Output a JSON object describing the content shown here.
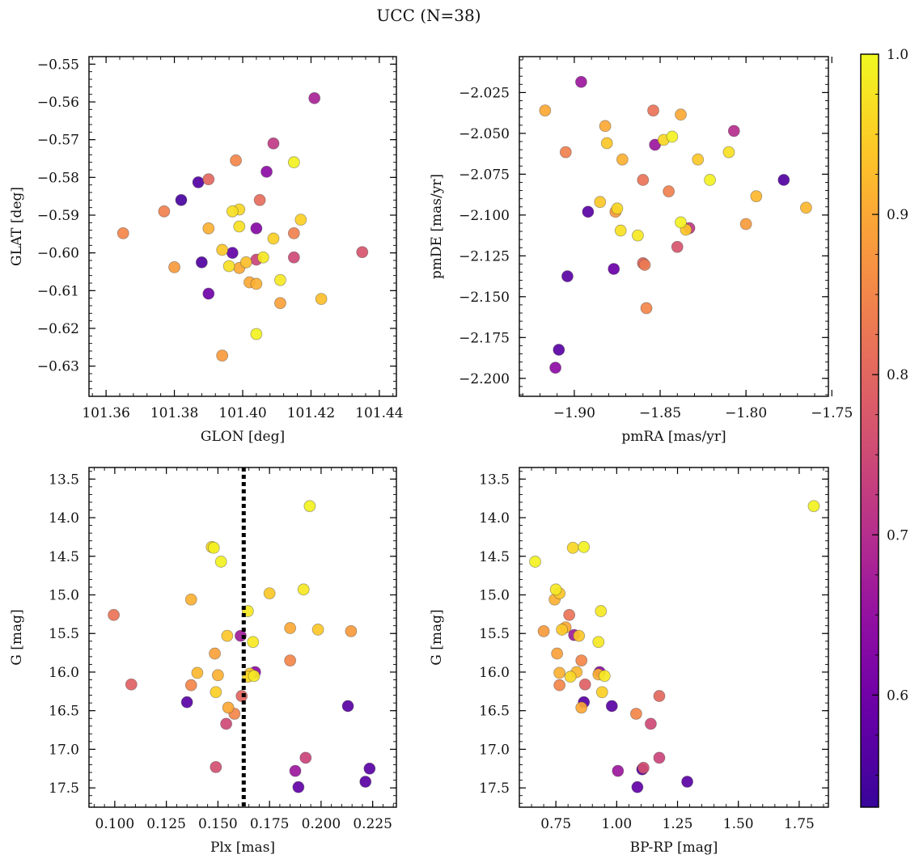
{
  "figure": {
    "title": "UCC (N=38)"
  },
  "colorbar": {
    "colormap": "plasma",
    "range": [
      0.53,
      1.0
    ],
    "ticks": [
      0.6,
      0.7,
      0.8,
      0.9,
      1.0
    ],
    "tick_labels": [
      "0.6",
      "0.7",
      "0.8",
      "0.9",
      "1.0"
    ]
  },
  "chart_data": [
    {
      "type": "scatter",
      "xlabel": "GLON [deg]",
      "ylabel": "GLAT [deg]",
      "xlim": [
        101.355,
        101.445
      ],
      "ylim": [
        -0.638,
        -0.548
      ],
      "y_inverted": false,
      "xticks": [
        101.36,
        101.38,
        101.4,
        101.42,
        101.44
      ],
      "xtick_labels": [
        "101.36",
        "101.38",
        "101.40",
        "101.42",
        "101.44"
      ],
      "yticks": [
        -0.63,
        -0.62,
        -0.61,
        -0.6,
        -0.59,
        -0.58,
        -0.57,
        -0.56,
        -0.55
      ],
      "ytick_labels": [
        "−0.63",
        "−0.62",
        "−0.61",
        "−0.60",
        "−0.59",
        "−0.58",
        "−0.57",
        "−0.56",
        "−0.55"
      ],
      "points": [
        {
          "x": 101.421,
          "y": -0.559,
          "c": 0.68
        },
        {
          "x": 101.409,
          "y": -0.571,
          "c": 0.72
        },
        {
          "x": 101.415,
          "y": -0.576,
          "c": 0.99
        },
        {
          "x": 101.398,
          "y": -0.5755,
          "c": 0.85
        },
        {
          "x": 101.407,
          "y": -0.5785,
          "c": 0.64
        },
        {
          "x": 101.387,
          "y": -0.5813,
          "c": 0.56
        },
        {
          "x": 101.39,
          "y": -0.5805,
          "c": 0.8
        },
        {
          "x": 101.382,
          "y": -0.586,
          "c": 0.55
        },
        {
          "x": 101.405,
          "y": -0.586,
          "c": 0.81
        },
        {
          "x": 101.377,
          "y": -0.589,
          "c": 0.84
        },
        {
          "x": 101.397,
          "y": -0.589,
          "c": 0.97
        },
        {
          "x": 101.399,
          "y": -0.5885,
          "c": 0.96
        },
        {
          "x": 101.417,
          "y": -0.5912,
          "c": 0.95
        },
        {
          "x": 101.399,
          "y": -0.593,
          "c": 0.97
        },
        {
          "x": 101.39,
          "y": -0.5935,
          "c": 0.91
        },
        {
          "x": 101.404,
          "y": -0.5935,
          "c": 0.63
        },
        {
          "x": 101.365,
          "y": -0.5948,
          "c": 0.85
        },
        {
          "x": 101.415,
          "y": -0.5948,
          "c": 0.84
        },
        {
          "x": 101.409,
          "y": -0.5962,
          "c": 0.95
        },
        {
          "x": 101.394,
          "y": -0.5992,
          "c": 0.94
        },
        {
          "x": 101.435,
          "y": -0.5998,
          "c": 0.77
        },
        {
          "x": 101.397,
          "y": -0.6,
          "c": 0.58
        },
        {
          "x": 101.406,
          "y": -0.6012,
          "c": 0.98
        },
        {
          "x": 101.404,
          "y": -0.6018,
          "c": 0.74
        },
        {
          "x": 101.415,
          "y": -0.6012,
          "c": 0.75
        },
        {
          "x": 101.388,
          "y": -0.6025,
          "c": 0.56
        },
        {
          "x": 101.401,
          "y": -0.6025,
          "c": 0.93
        },
        {
          "x": 101.38,
          "y": -0.6038,
          "c": 0.88
        },
        {
          "x": 101.396,
          "y": -0.6035,
          "c": 0.97
        },
        {
          "x": 101.399,
          "y": -0.604,
          "c": 0.9
        },
        {
          "x": 101.402,
          "y": -0.6078,
          "c": 0.9
        },
        {
          "x": 101.404,
          "y": -0.6082,
          "c": 0.91
        },
        {
          "x": 101.411,
          "y": -0.6072,
          "c": 0.98
        },
        {
          "x": 101.39,
          "y": -0.6108,
          "c": 0.6
        },
        {
          "x": 101.411,
          "y": -0.6133,
          "c": 0.89
        },
        {
          "x": 101.423,
          "y": -0.6122,
          "c": 0.93
        },
        {
          "x": 101.404,
          "y": -0.6215,
          "c": 0.99
        },
        {
          "x": 101.394,
          "y": -0.6272,
          "c": 0.88
        }
      ]
    },
    {
      "type": "scatter",
      "xlabel": "pmRA [mas/yr]",
      "ylabel": "pmDE [mas/yr]",
      "xlim": [
        -1.932,
        -1.752
      ],
      "ylim": [
        -2.211,
        -2.003
      ],
      "y_inverted": false,
      "xticks": [
        -1.9,
        -1.85,
        -1.8,
        -1.75
      ],
      "xtick_labels": [
        "−1.90",
        "−1.85",
        "−1.80",
        "−1.75"
      ],
      "yticks": [
        -2.2,
        -2.175,
        -2.15,
        -2.125,
        -2.1,
        -2.075,
        -2.05,
        -2.025
      ],
      "ytick_labels": [
        "−2.200",
        "−2.175",
        "−2.150",
        "−2.125",
        "−2.100",
        "−2.075",
        "−2.050",
        "−2.025"
      ],
      "points": [
        {
          "x": -1.896,
          "y": -2.0185,
          "c": 0.66
        },
        {
          "x": -1.917,
          "y": -2.036,
          "c": 0.9
        },
        {
          "x": -1.854,
          "y": -2.036,
          "c": 0.82
        },
        {
          "x": -1.838,
          "y": -2.0385,
          "c": 0.9
        },
        {
          "x": -1.882,
          "y": -2.0455,
          "c": 0.9
        },
        {
          "x": -1.807,
          "y": -2.0485,
          "c": 0.7
        },
        {
          "x": -1.843,
          "y": -2.052,
          "c": 0.99
        },
        {
          "x": -1.848,
          "y": -2.054,
          "c": 0.96
        },
        {
          "x": -1.853,
          "y": -2.057,
          "c": 0.66
        },
        {
          "x": -1.881,
          "y": -2.056,
          "c": 0.94
        },
        {
          "x": -1.905,
          "y": -2.0615,
          "c": 0.84
        },
        {
          "x": -1.81,
          "y": -2.0615,
          "c": 0.97
        },
        {
          "x": -1.872,
          "y": -2.066,
          "c": 0.91
        },
        {
          "x": -1.828,
          "y": -2.066,
          "c": 0.94
        },
        {
          "x": -1.821,
          "y": -2.0785,
          "c": 0.99
        },
        {
          "x": -1.86,
          "y": -2.0785,
          "c": 0.82
        },
        {
          "x": -1.778,
          "y": -2.0785,
          "c": 0.56
        },
        {
          "x": -1.845,
          "y": -2.0855,
          "c": 0.84
        },
        {
          "x": -1.794,
          "y": -2.0885,
          "c": 0.92
        },
        {
          "x": -1.885,
          "y": -2.092,
          "c": 0.94
        },
        {
          "x": -1.765,
          "y": -2.0955,
          "c": 0.92
        },
        {
          "x": -1.875,
          "y": -2.096,
          "c": 0.96
        },
        {
          "x": -1.876,
          "y": -2.098,
          "c": 0.88
        },
        {
          "x": -1.892,
          "y": -2.098,
          "c": 0.57
        },
        {
          "x": -1.838,
          "y": -2.1045,
          "c": 0.99
        },
        {
          "x": -1.8,
          "y": -2.1055,
          "c": 0.88
        },
        {
          "x": -1.833,
          "y": -2.108,
          "c": 0.72
        },
        {
          "x": -1.835,
          "y": -2.109,
          "c": 0.94
        },
        {
          "x": -1.873,
          "y": -2.1095,
          "c": 0.97
        },
        {
          "x": -1.863,
          "y": -2.1125,
          "c": 0.98
        },
        {
          "x": -1.84,
          "y": -2.1195,
          "c": 0.77
        },
        {
          "x": -1.86,
          "y": -2.1295,
          "c": 0.8
        },
        {
          "x": -1.859,
          "y": -2.1305,
          "c": 0.83
        },
        {
          "x": -1.877,
          "y": -2.133,
          "c": 0.59
        },
        {
          "x": -1.904,
          "y": -2.1375,
          "c": 0.57
        },
        {
          "x": -1.858,
          "y": -2.157,
          "c": 0.85
        },
        {
          "x": -1.909,
          "y": -2.1825,
          "c": 0.57
        },
        {
          "x": -1.911,
          "y": -2.1935,
          "c": 0.64
        }
      ]
    },
    {
      "type": "scatter",
      "xlabel": "Plx [mas]",
      "ylabel": "G [mag]",
      "xlim": [
        0.0875,
        0.2365
      ],
      "ylim": [
        17.75,
        13.35
      ],
      "y_inverted": true,
      "vline": 0.1625,
      "xticks": [
        0.1,
        0.125,
        0.15,
        0.175,
        0.2,
        0.225
      ],
      "xtick_labels": [
        "0.100",
        "0.125",
        "0.150",
        "0.175",
        "0.200",
        "0.225"
      ],
      "yticks": [
        13.5,
        14.0,
        14.5,
        15.0,
        15.5,
        16.0,
        16.5,
        17.0,
        17.5
      ],
      "ytick_labels": [
        "13.5",
        "14.0",
        "14.5",
        "15.0",
        "15.5",
        "16.0",
        "16.5",
        "17.0",
        "17.5"
      ],
      "points": [
        {
          "x": 0.1945,
          "y": 13.85,
          "c": 0.99
        },
        {
          "x": 0.147,
          "y": 14.38,
          "c": 0.96
        },
        {
          "x": 0.148,
          "y": 14.39,
          "c": 0.99
        },
        {
          "x": 0.1515,
          "y": 14.57,
          "c": 0.99
        },
        {
          "x": 0.1915,
          "y": 14.93,
          "c": 0.98
        },
        {
          "x": 0.175,
          "y": 14.98,
          "c": 0.94
        },
        {
          "x": 0.137,
          "y": 15.06,
          "c": 0.91
        },
        {
          "x": 0.1645,
          "y": 15.21,
          "c": 0.98
        },
        {
          "x": 0.0995,
          "y": 15.26,
          "c": 0.82
        },
        {
          "x": 0.185,
          "y": 15.43,
          "c": 0.9
        },
        {
          "x": 0.1985,
          "y": 15.45,
          "c": 0.94
        },
        {
          "x": 0.2145,
          "y": 15.47,
          "c": 0.88
        },
        {
          "x": 0.1545,
          "y": 15.53,
          "c": 0.94
        },
        {
          "x": 0.161,
          "y": 15.53,
          "c": 0.67
        },
        {
          "x": 0.167,
          "y": 15.61,
          "c": 0.98
        },
        {
          "x": 0.1485,
          "y": 15.76,
          "c": 0.89
        },
        {
          "x": 0.185,
          "y": 15.85,
          "c": 0.85
        },
        {
          "x": 0.168,
          "y": 16.0,
          "c": 0.64
        },
        {
          "x": 0.1655,
          "y": 16.02,
          "c": 0.94
        },
        {
          "x": 0.14,
          "y": 16.01,
          "c": 0.92
        },
        {
          "x": 0.15,
          "y": 16.04,
          "c": 0.91
        },
        {
          "x": 0.1645,
          "y": 16.06,
          "c": 0.96
        },
        {
          "x": 0.1675,
          "y": 16.05,
          "c": 0.98
        },
        {
          "x": 0.108,
          "y": 16.16,
          "c": 0.79
        },
        {
          "x": 0.137,
          "y": 16.17,
          "c": 0.85
        },
        {
          "x": 0.149,
          "y": 16.26,
          "c": 0.95
        },
        {
          "x": 0.1615,
          "y": 16.31,
          "c": 0.8
        },
        {
          "x": 0.135,
          "y": 16.39,
          "c": 0.57
        },
        {
          "x": 0.213,
          "y": 16.44,
          "c": 0.57
        },
        {
          "x": 0.155,
          "y": 16.46,
          "c": 0.9
        },
        {
          "x": 0.158,
          "y": 16.54,
          "c": 0.85
        },
        {
          "x": 0.154,
          "y": 16.67,
          "c": 0.75
        },
        {
          "x": 0.1925,
          "y": 17.11,
          "c": 0.74
        },
        {
          "x": 0.149,
          "y": 17.23,
          "c": 0.76
        },
        {
          "x": 0.2235,
          "y": 17.25,
          "c": 0.57
        },
        {
          "x": 0.1875,
          "y": 17.28,
          "c": 0.66
        },
        {
          "x": 0.2215,
          "y": 17.42,
          "c": 0.57
        },
        {
          "x": 0.189,
          "y": 17.49,
          "c": 0.58
        }
      ]
    },
    {
      "type": "scatter",
      "xlabel": "BP-RP [mag]",
      "ylabel": "G [mag]",
      "xlim": [
        0.6,
        1.87
      ],
      "ylim": [
        17.75,
        13.35
      ],
      "y_inverted": true,
      "xticks": [
        0.75,
        1.0,
        1.25,
        1.5,
        1.75
      ],
      "xtick_labels": [
        "0.75",
        "1.00",
        "1.25",
        "1.50",
        "1.75"
      ],
      "yticks": [
        13.5,
        14.0,
        14.5,
        15.0,
        15.5,
        16.0,
        16.5,
        17.0,
        17.5
      ],
      "ytick_labels": [
        "13.5",
        "14.0",
        "14.5",
        "15.0",
        "15.5",
        "16.0",
        "16.5",
        "17.0",
        "17.5"
      ],
      "points": [
        {
          "x": 1.81,
          "y": 13.85,
          "c": 0.99
        },
        {
          "x": 0.82,
          "y": 14.39,
          "c": 0.96
        },
        {
          "x": 0.865,
          "y": 14.38,
          "c": 0.99
        },
        {
          "x": 0.665,
          "y": 14.57,
          "c": 0.99
        },
        {
          "x": 0.75,
          "y": 14.93,
          "c": 0.98
        },
        {
          "x": 0.765,
          "y": 14.98,
          "c": 0.94
        },
        {
          "x": 0.745,
          "y": 15.06,
          "c": 0.91
        },
        {
          "x": 0.935,
          "y": 15.21,
          "c": 0.98
        },
        {
          "x": 0.805,
          "y": 15.26,
          "c": 0.82
        },
        {
          "x": 0.79,
          "y": 15.42,
          "c": 0.9
        },
        {
          "x": 0.775,
          "y": 15.45,
          "c": 0.94
        },
        {
          "x": 0.7,
          "y": 15.47,
          "c": 0.88
        },
        {
          "x": 0.825,
          "y": 15.52,
          "c": 0.67
        },
        {
          "x": 0.845,
          "y": 15.53,
          "c": 0.94
        },
        {
          "x": 0.925,
          "y": 15.61,
          "c": 0.98
        },
        {
          "x": 0.755,
          "y": 15.76,
          "c": 0.89
        },
        {
          "x": 0.855,
          "y": 15.85,
          "c": 0.85
        },
        {
          "x": 0.93,
          "y": 16.0,
          "c": 0.64
        },
        {
          "x": 0.835,
          "y": 16.0,
          "c": 0.92
        },
        {
          "x": 0.765,
          "y": 16.01,
          "c": 0.91
        },
        {
          "x": 0.925,
          "y": 16.03,
          "c": 0.91
        },
        {
          "x": 0.81,
          "y": 16.06,
          "c": 0.96
        },
        {
          "x": 0.95,
          "y": 16.05,
          "c": 0.98
        },
        {
          "x": 0.87,
          "y": 16.16,
          "c": 0.79
        },
        {
          "x": 0.765,
          "y": 16.17,
          "c": 0.85
        },
        {
          "x": 0.94,
          "y": 16.26,
          "c": 0.95
        },
        {
          "x": 1.175,
          "y": 16.31,
          "c": 0.8
        },
        {
          "x": 0.865,
          "y": 16.39,
          "c": 0.57
        },
        {
          "x": 0.98,
          "y": 16.44,
          "c": 0.57
        },
        {
          "x": 0.855,
          "y": 16.46,
          "c": 0.9
        },
        {
          "x": 1.08,
          "y": 16.54,
          "c": 0.85
        },
        {
          "x": 1.14,
          "y": 16.67,
          "c": 0.75
        },
        {
          "x": 1.175,
          "y": 17.11,
          "c": 0.74
        },
        {
          "x": 1.11,
          "y": 17.24,
          "c": 0.76
        },
        {
          "x": 1.105,
          "y": 17.26,
          "c": 0.57
        },
        {
          "x": 1.005,
          "y": 17.28,
          "c": 0.66
        },
        {
          "x": 1.29,
          "y": 17.42,
          "c": 0.57
        },
        {
          "x": 1.085,
          "y": 17.49,
          "c": 0.58
        }
      ]
    }
  ]
}
